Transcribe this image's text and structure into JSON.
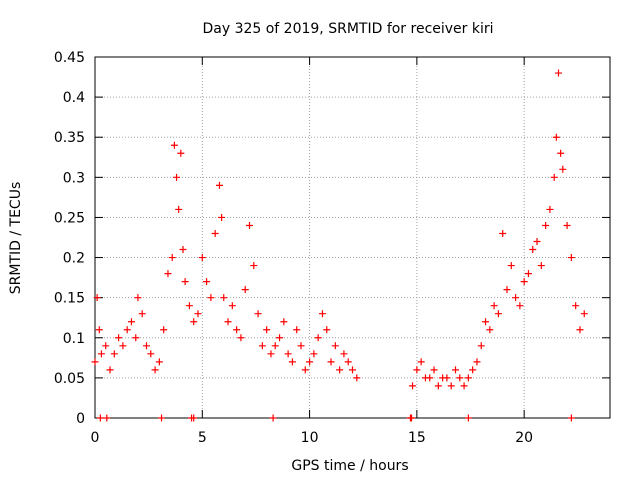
{
  "chart_data": {
    "type": "scatter",
    "title": "Day 325 of 2019, SRMTID for receiver kiri",
    "xlabel": "GPS time / hours",
    "ylabel": "SRMTID / TECUs",
    "xlim": [
      0,
      24
    ],
    "ylim": [
      0,
      0.45
    ],
    "grid": true,
    "marker": "+",
    "colors": {
      "marker": "#ff0000",
      "grid": "#a0a0a0",
      "axis": "#000000"
    },
    "x_ticks": [
      0,
      5,
      10,
      15,
      20
    ],
    "y_ticks": [
      0,
      0.05,
      0.1,
      0.15,
      0.2,
      0.25,
      0.3,
      0.35,
      0.4,
      0.45
    ],
    "x_tick_labels": [
      "0",
      "5",
      "10",
      "15",
      "20"
    ],
    "y_tick_labels": [
      "0",
      "0.05",
      "0.1",
      "0.15",
      "0.2",
      "0.25",
      "0.3",
      "0.35",
      "0.4",
      "0.45"
    ],
    "series": [
      {
        "name": "kiri",
        "x": [
          0.0,
          0.1,
          0.2,
          0.3,
          0.5,
          0.7,
          0.9,
          1.1,
          1.3,
          1.5,
          1.7,
          1.9,
          2.0,
          2.2,
          2.4,
          2.6,
          2.8,
          3.0,
          3.2,
          3.4,
          3.6,
          3.7,
          3.8,
          3.9,
          4.0,
          4.1,
          4.2,
          4.4,
          4.6,
          4.8,
          5.0,
          5.2,
          5.4,
          5.6,
          5.8,
          5.9,
          6.0,
          6.2,
          6.4,
          6.6,
          6.8,
          7.0,
          7.2,
          7.4,
          7.6,
          7.8,
          8.0,
          8.2,
          8.4,
          8.6,
          8.8,
          9.0,
          9.2,
          9.4,
          9.6,
          9.8,
          10.0,
          10.2,
          10.4,
          10.6,
          10.8,
          11.0,
          11.2,
          11.4,
          11.6,
          11.8,
          12.0,
          12.2,
          14.8,
          15.0,
          15.2,
          15.4,
          15.6,
          15.8,
          16.0,
          16.2,
          16.4,
          16.6,
          16.8,
          17.0,
          17.2,
          17.4,
          17.6,
          17.8,
          18.0,
          18.2,
          18.4,
          18.6,
          18.8,
          19.0,
          19.2,
          19.4,
          19.6,
          19.8,
          20.0,
          20.2,
          20.4,
          20.6,
          20.8,
          21.0,
          21.2,
          21.4,
          21.5,
          21.6,
          21.7,
          21.8,
          22.0,
          22.2,
          22.4,
          22.6,
          22.8
        ],
        "y": [
          0.07,
          0.15,
          0.11,
          0.08,
          0.09,
          0.06,
          0.08,
          0.1,
          0.09,
          0.11,
          0.12,
          0.1,
          0.15,
          0.13,
          0.09,
          0.08,
          0.06,
          0.07,
          0.11,
          0.18,
          0.2,
          0.34,
          0.3,
          0.26,
          0.33,
          0.21,
          0.17,
          0.14,
          0.12,
          0.13,
          0.2,
          0.17,
          0.15,
          0.23,
          0.29,
          0.25,
          0.15,
          0.12,
          0.14,
          0.11,
          0.1,
          0.16,
          0.24,
          0.19,
          0.13,
          0.09,
          0.11,
          0.08,
          0.09,
          0.1,
          0.12,
          0.08,
          0.07,
          0.11,
          0.09,
          0.06,
          0.07,
          0.08,
          0.1,
          0.13,
          0.11,
          0.07,
          0.09,
          0.06,
          0.08,
          0.07,
          0.06,
          0.05,
          0.04,
          0.06,
          0.07,
          0.05,
          0.05,
          0.06,
          0.04,
          0.05,
          0.05,
          0.04,
          0.06,
          0.05,
          0.04,
          0.05,
          0.06,
          0.07,
          0.09,
          0.12,
          0.11,
          0.14,
          0.13,
          0.23,
          0.16,
          0.19,
          0.15,
          0.14,
          0.17,
          0.18,
          0.21,
          0.22,
          0.19,
          0.24,
          0.26,
          0.3,
          0.35,
          0.43,
          0.33,
          0.31,
          0.24,
          0.2,
          0.14,
          0.11,
          0.13
        ],
        "zeros_x": [
          0.25,
          0.55,
          3.1,
          4.5,
          4.6,
          8.3,
          14.7,
          14.75,
          17.4,
          22.2
        ]
      }
    ]
  }
}
